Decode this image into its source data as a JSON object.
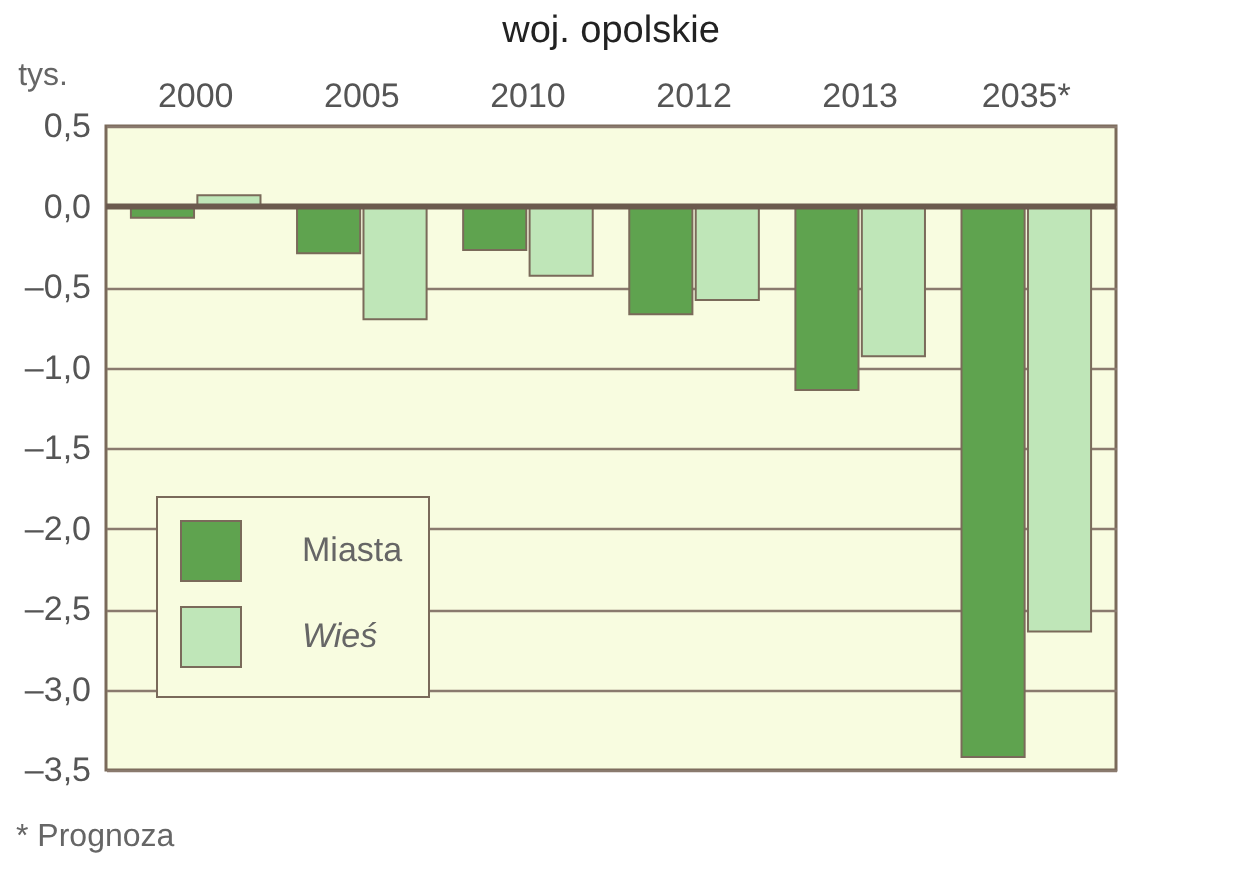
{
  "chart_data": {
    "type": "bar",
    "title": "woj. opolskie",
    "ylabel": "tys.",
    "categories": [
      "2000",
      "2005",
      "2010",
      "2012",
      "2013",
      "2035*"
    ],
    "series": [
      {
        "name": "Miasta",
        "color": "#5fa34f",
        "values": [
          -0.07,
          -0.29,
          -0.27,
          -0.67,
          -1.14,
          -3.42
        ]
      },
      {
        "name": "Wieś",
        "color": "#bfe6b8",
        "values": [
          0.07,
          -0.7,
          -0.43,
          -0.58,
          -0.93,
          -2.64
        ]
      }
    ],
    "ylim": [
      -3.5,
      0.5
    ],
    "yticks": [
      {
        "value": 0.5,
        "label": "0,5"
      },
      {
        "value": 0,
        "label": "0,0"
      },
      {
        "value": -0.5,
        "label": "–0,5"
      },
      {
        "value": -1,
        "label": "–1,0"
      },
      {
        "value": -1.5,
        "label": "–1,5"
      },
      {
        "value": -2,
        "label": "–2,0"
      },
      {
        "value": -2.5,
        "label": "–2,5"
      },
      {
        "value": -3,
        "label": "–3,0"
      },
      {
        "value": -3.5,
        "label": "–3,5"
      }
    ],
    "grid": "y",
    "legend": "bottom left",
    "ref_lines": [
      {
        "axis": "y",
        "value": 0,
        "color": "#6b5a4e"
      }
    ],
    "annotations": [
      "* Prognoza"
    ]
  }
}
